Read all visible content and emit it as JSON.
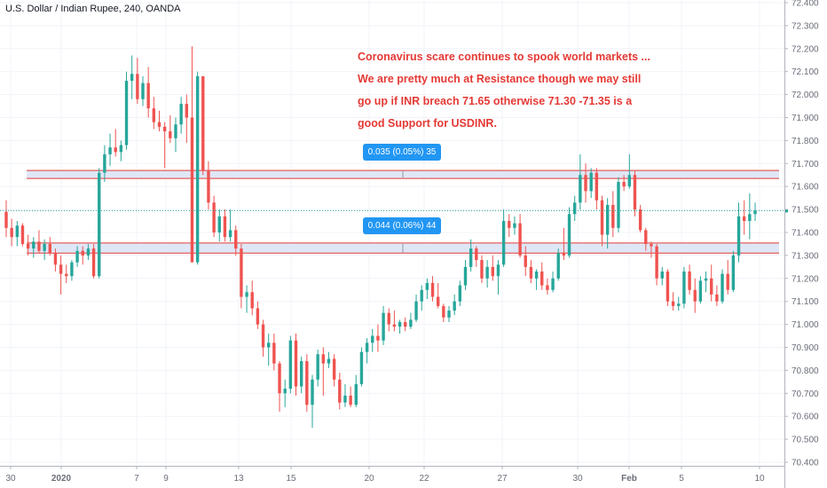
{
  "chart": {
    "symbol_title": "U.S. Dollar / Indian Rupee, 240, OANDA",
    "annotation_lines": [
      "Coronavirus scare continues to spook world markets ...",
      "We are pretty much at Resistance though we may still",
      "go up if INR breach 71.65 otherwise 71.30 -71.35 is a",
      "good Support for USDINR."
    ],
    "resistance_badge": "0.035 (0.05%) 35",
    "support_badge": "0.044 (0.06%) 44",
    "colors": {
      "up": "#26a69a",
      "down": "#ef5350",
      "annotation": "#e53935",
      "zone_fill": "#dfe7f7",
      "zone_border": "#e53935",
      "badge": "#2196f3",
      "last_price_line": "#26a69a"
    }
  },
  "chart_data": {
    "type": "candlestick",
    "title": "U.S. Dollar / Indian Rupee, 240, OANDA",
    "y_ticks": [
      70.4,
      70.5,
      70.6,
      70.7,
      70.8,
      70.9,
      71.0,
      71.1,
      71.2,
      71.3,
      71.4,
      71.5,
      71.6,
      71.7,
      71.8,
      71.9,
      72.0,
      72.1,
      72.2,
      72.3,
      72.4
    ],
    "y_tick_labels": [
      "70.400",
      "70.500",
      "70.600",
      "70.700",
      "70.800",
      "70.900",
      "71.000",
      "71.100",
      "71.200",
      "71.300",
      "71.400",
      "71.500",
      "71.600",
      "71.700",
      "71.800",
      "71.900",
      "72.000",
      "72.100",
      "72.200",
      "72.300",
      "72.400"
    ],
    "ylim": [
      70.395,
      72.43
    ],
    "x_labels": [
      "30",
      "2020",
      "7",
      "9",
      "13",
      "15",
      "20",
      "22",
      "27",
      "30",
      "Feb",
      "5",
      "10"
    ],
    "last_price": 71.495,
    "zones": [
      {
        "low": 71.635,
        "high": 71.67
      },
      {
        "low": 71.31,
        "high": 71.354
      }
    ],
    "candles": [
      [
        71.49,
        71.54,
        71.38,
        71.42
      ],
      [
        71.42,
        71.46,
        71.34,
        71.38
      ],
      [
        71.38,
        71.45,
        71.34,
        71.43
      ],
      [
        71.43,
        71.44,
        71.34,
        71.35
      ],
      [
        71.35,
        71.39,
        71.3,
        71.33
      ],
      [
        71.33,
        71.38,
        71.29,
        71.36
      ],
      [
        71.36,
        71.41,
        71.31,
        71.32
      ],
      [
        71.32,
        71.37,
        71.28,
        71.35
      ],
      [
        71.35,
        71.38,
        71.3,
        71.31
      ],
      [
        71.31,
        71.33,
        71.23,
        71.26
      ],
      [
        71.26,
        71.3,
        71.13,
        71.22
      ],
      [
        71.22,
        71.26,
        71.18,
        71.21
      ],
      [
        71.21,
        71.28,
        71.19,
        71.27
      ],
      [
        71.27,
        71.34,
        71.25,
        71.32
      ],
      [
        71.32,
        71.34,
        71.26,
        71.3
      ],
      [
        71.3,
        71.35,
        71.28,
        71.33
      ],
      [
        71.33,
        71.35,
        71.2,
        71.21
      ],
      [
        71.21,
        71.68,
        71.2,
        71.66
      ],
      [
        71.66,
        71.78,
        71.62,
        71.74
      ],
      [
        71.74,
        71.83,
        71.69,
        71.77
      ],
      [
        71.77,
        71.85,
        71.73,
        71.75
      ],
      [
        71.75,
        71.8,
        71.71,
        71.78
      ],
      [
        71.78,
        72.1,
        71.76,
        72.06
      ],
      [
        72.06,
        72.17,
        71.98,
        72.09
      ],
      [
        72.09,
        72.16,
        71.96,
        71.98
      ],
      [
        71.98,
        72.08,
        71.95,
        72.05
      ],
      [
        72.05,
        72.12,
        71.9,
        71.94
      ],
      [
        71.94,
        71.99,
        71.85,
        71.88
      ],
      [
        71.88,
        71.93,
        71.84,
        71.86
      ],
      [
        71.86,
        71.88,
        71.68,
        71.84
      ],
      [
        71.84,
        71.91,
        71.79,
        71.81
      ],
      [
        71.81,
        71.9,
        71.75,
        71.87
      ],
      [
        71.87,
        71.99,
        71.83,
        71.96
      ],
      [
        71.96,
        72.0,
        71.79,
        71.9
      ],
      [
        71.9,
        72.21,
        71.27,
        71.27
      ],
      [
        71.27,
        72.1,
        71.26,
        72.08
      ],
      [
        72.08,
        72.08,
        71.65,
        71.67
      ],
      [
        71.67,
        71.71,
        71.5,
        71.53
      ],
      [
        71.53,
        71.56,
        71.38,
        71.4
      ],
      [
        71.4,
        71.5,
        71.36,
        71.47
      ],
      [
        71.47,
        71.5,
        71.36,
        71.38
      ],
      [
        71.38,
        71.5,
        71.36,
        71.41
      ],
      [
        71.41,
        71.43,
        71.3,
        71.33
      ],
      [
        71.33,
        71.35,
        71.07,
        71.12
      ],
      [
        71.12,
        71.17,
        71.05,
        71.14
      ],
      [
        71.14,
        71.19,
        71.04,
        71.07
      ],
      [
        71.07,
        71.1,
        70.98,
        71.0
      ],
      [
        71.0,
        71.02,
        70.86,
        70.9
      ],
      [
        70.9,
        70.96,
        70.82,
        70.92
      ],
      [
        70.92,
        70.96,
        70.8,
        70.83
      ],
      [
        70.83,
        70.84,
        70.62,
        70.7
      ],
      [
        70.7,
        70.76,
        70.64,
        70.72
      ],
      [
        70.72,
        70.95,
        70.7,
        70.93
      ],
      [
        70.93,
        70.96,
        70.69,
        70.73
      ],
      [
        70.73,
        70.86,
        70.7,
        70.84
      ],
      [
        70.84,
        70.87,
        70.62,
        70.65
      ],
      [
        70.65,
        70.78,
        70.55,
        70.76
      ],
      [
        70.76,
        70.89,
        70.73,
        70.87
      ],
      [
        70.87,
        70.9,
        70.69,
        70.83
      ],
      [
        70.83,
        70.88,
        70.81,
        70.85
      ],
      [
        70.85,
        70.87,
        70.73,
        70.76
      ],
      [
        70.76,
        70.79,
        70.63,
        70.66
      ],
      [
        70.66,
        70.74,
        70.64,
        70.69
      ],
      [
        70.69,
        70.73,
        70.64,
        70.65
      ],
      [
        70.65,
        70.78,
        70.64,
        70.74
      ],
      [
        70.74,
        70.9,
        70.73,
        70.88
      ],
      [
        70.88,
        70.94,
        70.83,
        70.92
      ],
      [
        70.92,
        70.98,
        70.88,
        70.95
      ],
      [
        70.95,
        71.0,
        70.88,
        70.93
      ],
      [
        70.93,
        71.08,
        70.91,
        71.05
      ],
      [
        71.05,
        71.07,
        70.97,
        71.0
      ],
      [
        71.0,
        71.06,
        70.97,
        70.99
      ],
      [
        70.99,
        71.02,
        70.96,
        71.01
      ],
      [
        71.01,
        71.03,
        70.97,
        70.99
      ],
      [
        70.99,
        71.05,
        70.98,
        71.02
      ],
      [
        71.02,
        71.13,
        71.01,
        71.1
      ],
      [
        71.1,
        71.17,
        71.06,
        71.15
      ],
      [
        71.15,
        71.2,
        71.11,
        71.18
      ],
      [
        71.18,
        71.21,
        71.1,
        71.12
      ],
      [
        71.12,
        71.18,
        71.07,
        71.08
      ],
      [
        71.08,
        71.09,
        71.01,
        71.03
      ],
      [
        71.03,
        71.08,
        71.01,
        71.06
      ],
      [
        71.06,
        71.13,
        71.04,
        71.1
      ],
      [
        71.1,
        71.19,
        71.08,
        71.17
      ],
      [
        71.17,
        71.28,
        71.15,
        71.25
      ],
      [
        71.25,
        71.37,
        71.23,
        71.33
      ],
      [
        71.33,
        71.34,
        71.25,
        71.28
      ],
      [
        71.28,
        71.3,
        71.18,
        71.2
      ],
      [
        71.2,
        71.28,
        71.16,
        71.25
      ],
      [
        71.25,
        71.3,
        71.19,
        71.21
      ],
      [
        71.21,
        71.28,
        71.13,
        71.26
      ],
      [
        71.26,
        71.5,
        71.25,
        71.45
      ],
      [
        71.45,
        71.48,
        71.38,
        71.42
      ],
      [
        71.42,
        71.47,
        71.39,
        71.44
      ],
      [
        71.44,
        71.48,
        71.29,
        71.3
      ],
      [
        71.3,
        71.34,
        71.21,
        71.25
      ],
      [
        71.25,
        71.28,
        71.18,
        71.2
      ],
      [
        71.2,
        71.24,
        71.15,
        71.23
      ],
      [
        71.23,
        71.27,
        71.15,
        71.17
      ],
      [
        71.17,
        71.2,
        71.13,
        71.15
      ],
      [
        71.15,
        71.23,
        71.14,
        71.2
      ],
      [
        71.2,
        71.33,
        71.19,
        71.31
      ],
      [
        71.31,
        71.42,
        71.28,
        71.3
      ],
      [
        71.3,
        71.51,
        71.29,
        71.48
      ],
      [
        71.48,
        71.56,
        71.45,
        71.53
      ],
      [
        71.53,
        71.74,
        71.5,
        71.65
      ],
      [
        71.65,
        71.7,
        71.53,
        71.58
      ],
      [
        71.58,
        71.68,
        71.55,
        71.66
      ],
      [
        71.66,
        71.68,
        71.5,
        71.54
      ],
      [
        71.54,
        71.56,
        71.34,
        71.39
      ],
      [
        71.39,
        71.55,
        71.33,
        71.52
      ],
      [
        71.52,
        71.58,
        71.38,
        71.42
      ],
      [
        71.42,
        71.64,
        71.4,
        71.62
      ],
      [
        71.62,
        71.65,
        71.58,
        71.6
      ],
      [
        71.6,
        71.74,
        71.59,
        71.65
      ],
      [
        71.65,
        71.67,
        71.47,
        71.5
      ],
      [
        71.5,
        71.52,
        71.4,
        71.41
      ],
      [
        71.41,
        71.42,
        71.32,
        71.35
      ],
      [
        71.35,
        71.36,
        71.29,
        71.34
      ],
      [
        71.34,
        71.35,
        71.17,
        71.2
      ],
      [
        71.2,
        71.25,
        71.17,
        71.23
      ],
      [
        71.23,
        71.24,
        71.08,
        71.1
      ],
      [
        71.1,
        71.14,
        71.06,
        71.08
      ],
      [
        71.08,
        71.12,
        71.06,
        71.09
      ],
      [
        71.09,
        71.25,
        71.07,
        71.23
      ],
      [
        71.23,
        71.26,
        71.13,
        71.15
      ],
      [
        71.15,
        71.2,
        71.05,
        71.1
      ],
      [
        71.1,
        71.21,
        71.09,
        71.19
      ],
      [
        71.19,
        71.23,
        71.14,
        71.2
      ],
      [
        71.2,
        71.26,
        71.1,
        71.13
      ],
      [
        71.13,
        71.17,
        71.08,
        71.1
      ],
      [
        71.1,
        71.24,
        71.09,
        71.22
      ],
      [
        71.22,
        71.28,
        71.13,
        71.15
      ],
      [
        71.15,
        71.32,
        71.14,
        71.3
      ],
      [
        71.3,
        71.53,
        71.27,
        71.47
      ],
      [
        71.47,
        71.54,
        71.39,
        71.45
      ],
      [
        71.45,
        71.57,
        71.37,
        71.48
      ],
      [
        71.48,
        71.53,
        71.45,
        71.495
      ]
    ]
  }
}
